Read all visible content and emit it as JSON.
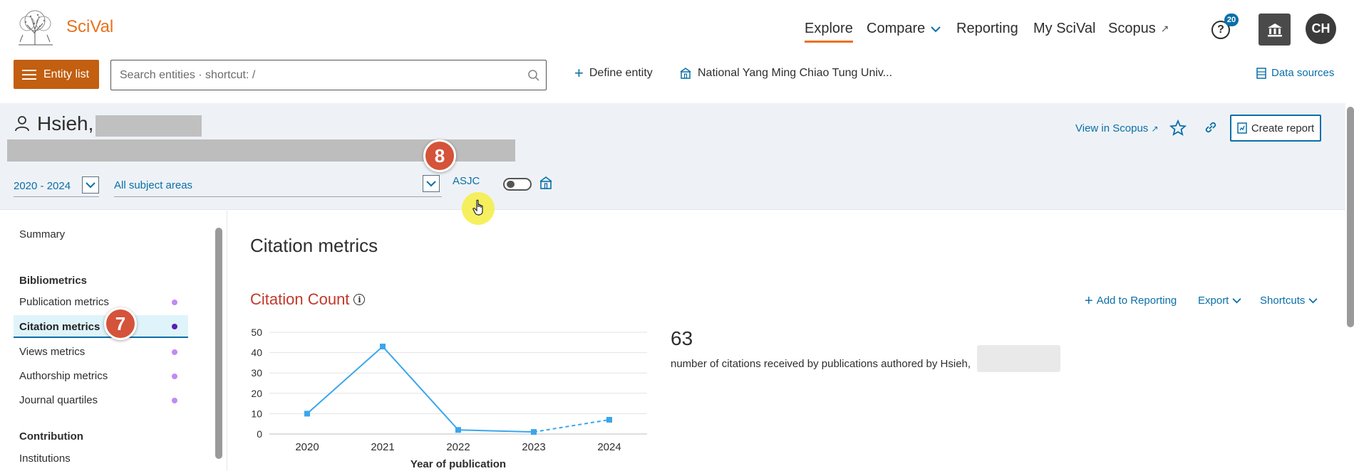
{
  "header": {
    "logo_text": "SciVal",
    "nav": [
      {
        "label": "Explore"
      },
      {
        "label": "Compare"
      },
      {
        "label": "Reporting"
      },
      {
        "label": "My SciVal"
      },
      {
        "label": "Scopus",
        "external": true
      }
    ],
    "help_badge": "20",
    "avatar_initials": "CH"
  },
  "toolbar": {
    "entity_list_label": "Entity list",
    "search_placeholder": "Search entities · shortcut: /",
    "define_entity_label": "Define entity",
    "institution_label": "National Yang Ming Chiao Tung Univ...",
    "data_sources_label": "Data sources"
  },
  "entity": {
    "name": "Hsieh,",
    "view_in_scopus": "View in Scopus",
    "create_report": "Create report",
    "year_range": "2020 - 2024",
    "subject_area": "All subject areas",
    "asjc_label": "ASJC"
  },
  "steps": {
    "step_7": "7",
    "step_8": "8"
  },
  "sidebar": {
    "summary": "Summary",
    "group_bibliometrics": "Bibliometrics",
    "items": [
      {
        "label": "Publication metrics"
      },
      {
        "label": "Citation metrics",
        "active": true
      },
      {
        "label": "Views metrics"
      },
      {
        "label": "Authorship metrics"
      },
      {
        "label": "Journal quartiles"
      }
    ],
    "group_contribution": "Contribution",
    "institutions": "Institutions"
  },
  "main": {
    "section_title": "Citation metrics",
    "metric_title": "Citation Count",
    "add_to_reporting": "Add to Reporting",
    "export": "Export",
    "shortcuts": "Shortcuts",
    "big_number": "63",
    "description": "number of citations received by publications authored by Hsieh,"
  },
  "colors": {
    "accent": "#e9711c",
    "link": "#0a6fa8",
    "line": "#3aa6ec",
    "metric_title": "#c0392b"
  },
  "chart_data": {
    "type": "line",
    "categories": [
      "2020",
      "2021",
      "2022",
      "2023",
      "2024"
    ],
    "values": [
      10,
      43,
      2,
      1,
      7
    ],
    "dashed_from_index": 3,
    "xlabel": "Year of publication",
    "ylabel": "",
    "ylim": [
      0,
      50
    ],
    "yticks": [
      0,
      10,
      20,
      30,
      40,
      50
    ],
    "grid": true
  }
}
